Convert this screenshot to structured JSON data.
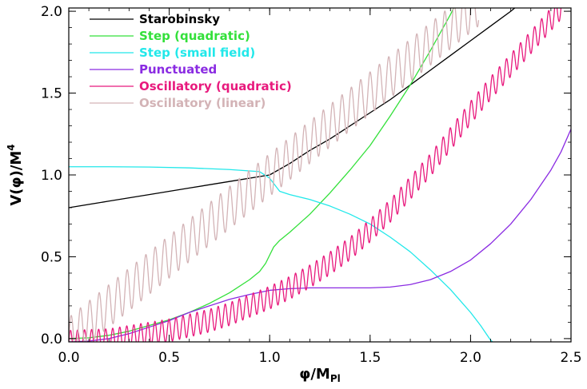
{
  "chart_data": {
    "type": "line",
    "title": "",
    "xlabel_main": "φ/M",
    "xlabel_sub": "Pl",
    "ylabel_main": "V(φ)/M",
    "ylabel_sup": "4",
    "xlim": [
      0.0,
      2.5
    ],
    "ylim": [
      -0.02,
      2.02
    ],
    "x_ticks": [
      {
        "v": 0.0,
        "label": "0.0"
      },
      {
        "v": 0.5,
        "label": "0.5"
      },
      {
        "v": 1.0,
        "label": "1.0"
      },
      {
        "v": 1.5,
        "label": "1.5"
      },
      {
        "v": 2.0,
        "label": "2.0"
      },
      {
        "v": 2.5,
        "label": "2.5"
      }
    ],
    "y_ticks": [
      {
        "v": 0.0,
        "label": "0.0"
      },
      {
        "v": 0.5,
        "label": "0.5"
      },
      {
        "v": 1.0,
        "label": "1.0"
      },
      {
        "v": 1.5,
        "label": "1.5"
      },
      {
        "v": 2.0,
        "label": "2.0"
      }
    ],
    "grid": false,
    "legend_position": "top-left",
    "series": [
      {
        "name": "Starobinsky",
        "color": "#000000",
        "points": [
          [
            0.0,
            0.8
          ],
          [
            0.2,
            0.84
          ],
          [
            0.4,
            0.88
          ],
          [
            0.6,
            0.92
          ],
          [
            0.8,
            0.96
          ],
          [
            1.0,
            1.0
          ],
          [
            1.1,
            1.07
          ],
          [
            1.2,
            1.15
          ],
          [
            1.3,
            1.22
          ],
          [
            1.4,
            1.3
          ],
          [
            1.5,
            1.38
          ],
          [
            1.6,
            1.46
          ],
          [
            1.7,
            1.55
          ],
          [
            1.8,
            1.64
          ],
          [
            1.9,
            1.73
          ],
          [
            2.0,
            1.82
          ],
          [
            2.1,
            1.91
          ],
          [
            2.2,
            2.0
          ],
          [
            2.3,
            2.1
          ]
        ]
      },
      {
        "name": "Step (quadratic)",
        "color": "#33e03a",
        "points": [
          [
            0.0,
            0.0
          ],
          [
            0.1,
            0.005
          ],
          [
            0.2,
            0.02
          ],
          [
            0.3,
            0.045
          ],
          [
            0.4,
            0.08
          ],
          [
            0.5,
            0.115
          ],
          [
            0.6,
            0.16
          ],
          [
            0.7,
            0.215
          ],
          [
            0.8,
            0.28
          ],
          [
            0.9,
            0.36
          ],
          [
            0.95,
            0.41
          ],
          [
            0.98,
            0.46
          ],
          [
            1.0,
            0.51
          ],
          [
            1.02,
            0.56
          ],
          [
            1.05,
            0.6
          ],
          [
            1.1,
            0.65
          ],
          [
            1.2,
            0.76
          ],
          [
            1.3,
            0.89
          ],
          [
            1.4,
            1.03
          ],
          [
            1.5,
            1.18
          ],
          [
            1.6,
            1.36
          ],
          [
            1.7,
            1.55
          ],
          [
            1.8,
            1.76
          ],
          [
            1.9,
            1.98
          ],
          [
            1.92,
            2.03
          ]
        ]
      },
      {
        "name": "Step (small field)",
        "color": "#22e8ea",
        "points": [
          [
            0.0,
            1.05
          ],
          [
            0.2,
            1.05
          ],
          [
            0.4,
            1.048
          ],
          [
            0.6,
            1.043
          ],
          [
            0.8,
            1.033
          ],
          [
            0.95,
            1.02
          ],
          [
            1.0,
            0.98
          ],
          [
            1.05,
            0.9
          ],
          [
            1.1,
            0.88
          ],
          [
            1.2,
            0.85
          ],
          [
            1.3,
            0.81
          ],
          [
            1.4,
            0.76
          ],
          [
            1.5,
            0.7
          ],
          [
            1.6,
            0.62
          ],
          [
            1.7,
            0.53
          ],
          [
            1.8,
            0.42
          ],
          [
            1.9,
            0.3
          ],
          [
            2.0,
            0.16
          ],
          [
            2.05,
            0.08
          ],
          [
            2.1,
            -0.01
          ],
          [
            2.12,
            -0.03
          ]
        ]
      },
      {
        "name": "Punctuated",
        "color": "#8a2be2",
        "points": [
          [
            0.0,
            -0.02
          ],
          [
            0.1,
            -0.015
          ],
          [
            0.2,
            0.0
          ],
          [
            0.3,
            0.03
          ],
          [
            0.4,
            0.07
          ],
          [
            0.5,
            0.11
          ],
          [
            0.6,
            0.16
          ],
          [
            0.7,
            0.2
          ],
          [
            0.8,
            0.24
          ],
          [
            0.9,
            0.27
          ],
          [
            1.0,
            0.295
          ],
          [
            1.1,
            0.305
          ],
          [
            1.2,
            0.31
          ],
          [
            1.3,
            0.31
          ],
          [
            1.4,
            0.31
          ],
          [
            1.5,
            0.31
          ],
          [
            1.6,
            0.315
          ],
          [
            1.7,
            0.33
          ],
          [
            1.8,
            0.36
          ],
          [
            1.9,
            0.41
          ],
          [
            2.0,
            0.48
          ],
          [
            2.1,
            0.58
          ],
          [
            2.2,
            0.7
          ],
          [
            2.3,
            0.85
          ],
          [
            2.4,
            1.03
          ],
          [
            2.45,
            1.14
          ],
          [
            2.5,
            1.28
          ]
        ]
      },
      {
        "name": "Oscillatory (quadratic)",
        "color": "#e8197d",
        "points": [
          [
            0.0,
            -0.02
          ],
          [
            0.2,
            -0.01
          ],
          [
            0.3,
            0.01
          ],
          [
            0.4,
            0.03
          ],
          [
            0.5,
            0.05
          ],
          [
            0.6,
            0.08
          ],
          [
            0.7,
            0.11
          ],
          [
            0.8,
            0.15
          ],
          [
            0.9,
            0.2
          ],
          [
            1.0,
            0.25
          ],
          [
            1.1,
            0.31
          ],
          [
            1.2,
            0.38
          ],
          [
            1.3,
            0.46
          ],
          [
            1.4,
            0.55
          ],
          [
            1.5,
            0.66
          ],
          [
            1.6,
            0.78
          ],
          [
            1.7,
            0.92
          ],
          [
            1.8,
            1.06
          ],
          [
            1.9,
            1.22
          ],
          [
            2.0,
            1.38
          ],
          [
            2.1,
            1.53
          ],
          [
            2.2,
            1.67
          ],
          [
            2.3,
            1.81
          ],
          [
            2.4,
            1.95
          ],
          [
            2.45,
            2.02
          ]
        ],
        "oscillation": {
          "amplitude": 0.07,
          "period": 0.035
        }
      },
      {
        "name": "Oscillatory (linear)",
        "color": "#d3b3b6",
        "points": [
          [
            0.0,
            0.0
          ],
          [
            0.5,
            0.5
          ],
          [
            1.0,
            1.0
          ],
          [
            1.5,
            1.5
          ],
          [
            2.0,
            2.0
          ],
          [
            2.04,
            2.04
          ]
        ],
        "oscillation": {
          "amplitude": 0.13,
          "period": 0.0465
        }
      }
    ]
  }
}
